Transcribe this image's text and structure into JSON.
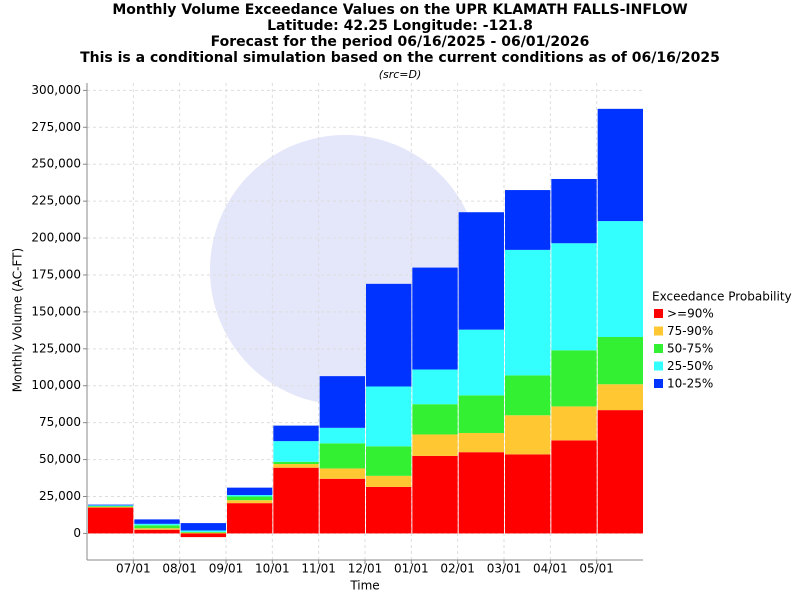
{
  "chart_data": {
    "type": "stacked_bar",
    "title_lines": [
      "Monthly Volume Exceedance Values on the UPR KLAMATH FALLS-INFLOW",
      "Latitude: 42.25 Longitude: -121.8",
      "Forecast for the period 06/16/2025 - 06/01/2026",
      "This is a conditional simulation based on the current conditions as of 06/16/2025"
    ],
    "subtitle": "(src=D)",
    "y_label": "Monthly Volume (AC-FT)",
    "x_label": "Time",
    "legend_title": "Exceedance Probability",
    "legend_position": "right",
    "grid": true,
    "xticks": [
      "07/01",
      "08/01",
      "09/01",
      "10/01",
      "11/01",
      "12/01",
      "01/01",
      "02/01",
      "03/01",
      "04/01",
      "05/01"
    ],
    "series": [
      {
        "name": ">=90%",
        "color": "#ff0000",
        "values": [
          17500,
          2500,
          -2500,
          20500,
          44500,
          37000,
          31500,
          52500,
          55000,
          53500,
          63000,
          83500
        ]
      },
      {
        "name": "75-90%",
        "color": "#ffc833",
        "values": [
          500,
          1000,
          500,
          2000,
          2500,
          7000,
          7500,
          14500,
          13000,
          26500,
          23000,
          17500
        ]
      },
      {
        "name": "50-75%",
        "color": "#33f033",
        "values": [
          500,
          2000,
          500,
          2500,
          1500,
          17000,
          20000,
          20500,
          25500,
          27000,
          38000,
          32000
        ]
      },
      {
        "name": "25-50%",
        "color": "#33ffff",
        "values": [
          500,
          1000,
          1000,
          1000,
          14000,
          10500,
          40500,
          23500,
          44500,
          85000,
          72500,
          78500
        ]
      },
      {
        "name": "10-25%",
        "color": "#0033ff",
        "values": [
          500,
          3000,
          5000,
          5000,
          10500,
          35000,
          69500,
          69000,
          79500,
          40500,
          43500,
          76000
        ]
      }
    ],
    "ylim": [
      -18000,
      305000
    ],
    "yticks": [
      0,
      {
        "value": 25000,
        "label": "25,000"
      },
      {
        "value": 50000,
        "label": "50,000"
      },
      {
        "value": 75000,
        "label": "75,000"
      },
      {
        "value": 100000,
        "label": "100,000"
      },
      {
        "value": 125000,
        "label": "125,000"
      },
      {
        "value": 150000,
        "label": "150,000"
      },
      {
        "value": 175000,
        "label": "175,000"
      },
      {
        "value": 200000,
        "label": "200,000"
      },
      {
        "value": 225000,
        "label": "225,000"
      },
      {
        "value": 250000,
        "label": "250,000"
      },
      {
        "value": 275000,
        "label": "275,000"
      },
      {
        "value": 300000,
        "label": "300,000"
      }
    ]
  }
}
